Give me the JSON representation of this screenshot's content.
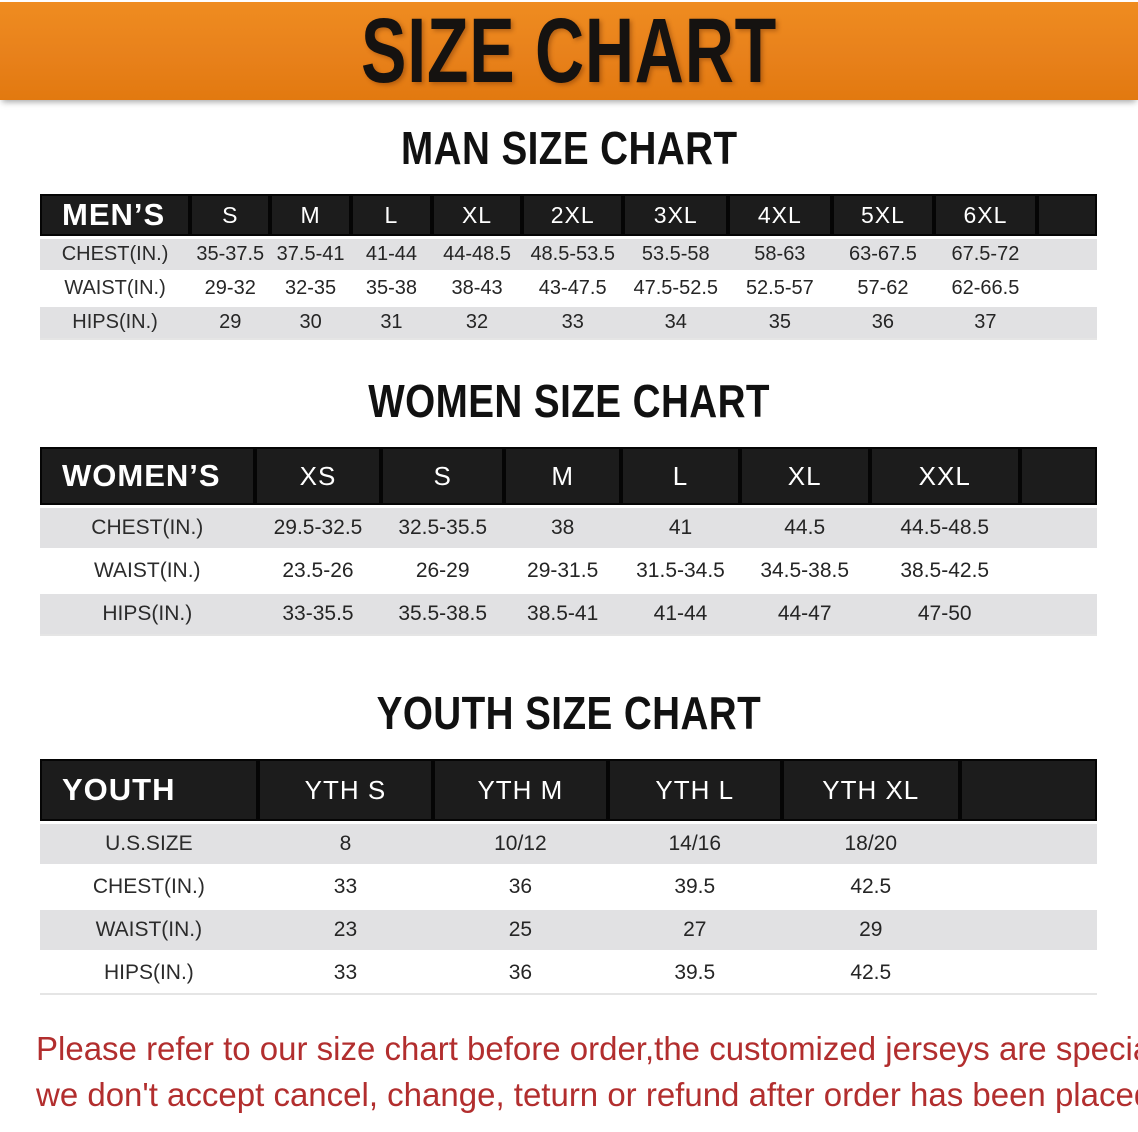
{
  "banner": {
    "title": "SIZE CHART"
  },
  "sections": [
    {
      "heading": "MAN SIZE CHART",
      "table": {
        "header_label": "MEN’S",
        "columns": [
          "S",
          "M",
          "L",
          "XL",
          "2XL",
          "3XL",
          "4XL",
          "5XL",
          "6XL"
        ],
        "rows": [
          {
            "label": "CHEST(IN.)",
            "values": [
              "35-37.5",
              "37.5-41",
              "41-44",
              "44-48.5",
              "48.5-53.5",
              "53.5-58",
              "58-63",
              "63-67.5",
              "67.5-72"
            ]
          },
          {
            "label": "WAIST(IN.)",
            "values": [
              "29-32",
              "32-35",
              "35-38",
              "38-43",
              "43-47.5",
              "47.5-52.5",
              "52.5-57",
              "57-62",
              "62-66.5"
            ]
          },
          {
            "label": "HIPS(IN.)",
            "values": [
              "29",
              "30",
              "31",
              "32",
              "33",
              "34",
              "35",
              "36",
              "37"
            ]
          }
        ]
      }
    },
    {
      "heading": "WOMEN SIZE CHART",
      "table": {
        "header_label": "WOMEN’S",
        "columns": [
          "XS",
          "S",
          "M",
          "L",
          "XL",
          "XXL"
        ],
        "rows": [
          {
            "label": "CHEST(IN.)",
            "values": [
              "29.5-32.5",
              "32.5-35.5",
              "38",
              "41",
              "44.5",
              "44.5-48.5"
            ]
          },
          {
            "label": "WAIST(IN.)",
            "values": [
              "23.5-26",
              "26-29",
              "29-31.5",
              "31.5-34.5",
              "34.5-38.5",
              "38.5-42.5"
            ]
          },
          {
            "label": "HIPS(IN.)",
            "values": [
              "33-35.5",
              "35.5-38.5",
              "38.5-41",
              "41-44",
              "44-47",
              "47-50"
            ]
          }
        ]
      }
    },
    {
      "heading": "YOUTH SIZE CHART",
      "table": {
        "header_label": "YOUTH",
        "columns": [
          "YTH S",
          "YTH M",
          "YTH L",
          "YTH XL"
        ],
        "rows": [
          {
            "label": "U.S.SIZE",
            "values": [
              "8",
              "10/12",
              "14/16",
              "18/20"
            ]
          },
          {
            "label": "CHEST(IN.)",
            "values": [
              "33",
              "36",
              "39.5",
              "42.5"
            ]
          },
          {
            "label": "WAIST(IN.)",
            "values": [
              "23",
              "25",
              "27",
              "29"
            ]
          },
          {
            "label": "HIPS(IN.)",
            "values": [
              "33",
              "36",
              "39.5",
              "42.5"
            ]
          }
        ]
      }
    }
  ],
  "footer": {
    "lines": [
      "Please refer to our size chart before order,the customized jerseys are special products,",
      "we don't accept cancel, change, teturn or refund after order has been placed!"
    ]
  },
  "colors": {
    "banner_orange": "#e8811b",
    "header_bar_black": "#1c1c1c",
    "row_gray": "#e1e1e3",
    "notice_red": "#b22e2e"
  }
}
